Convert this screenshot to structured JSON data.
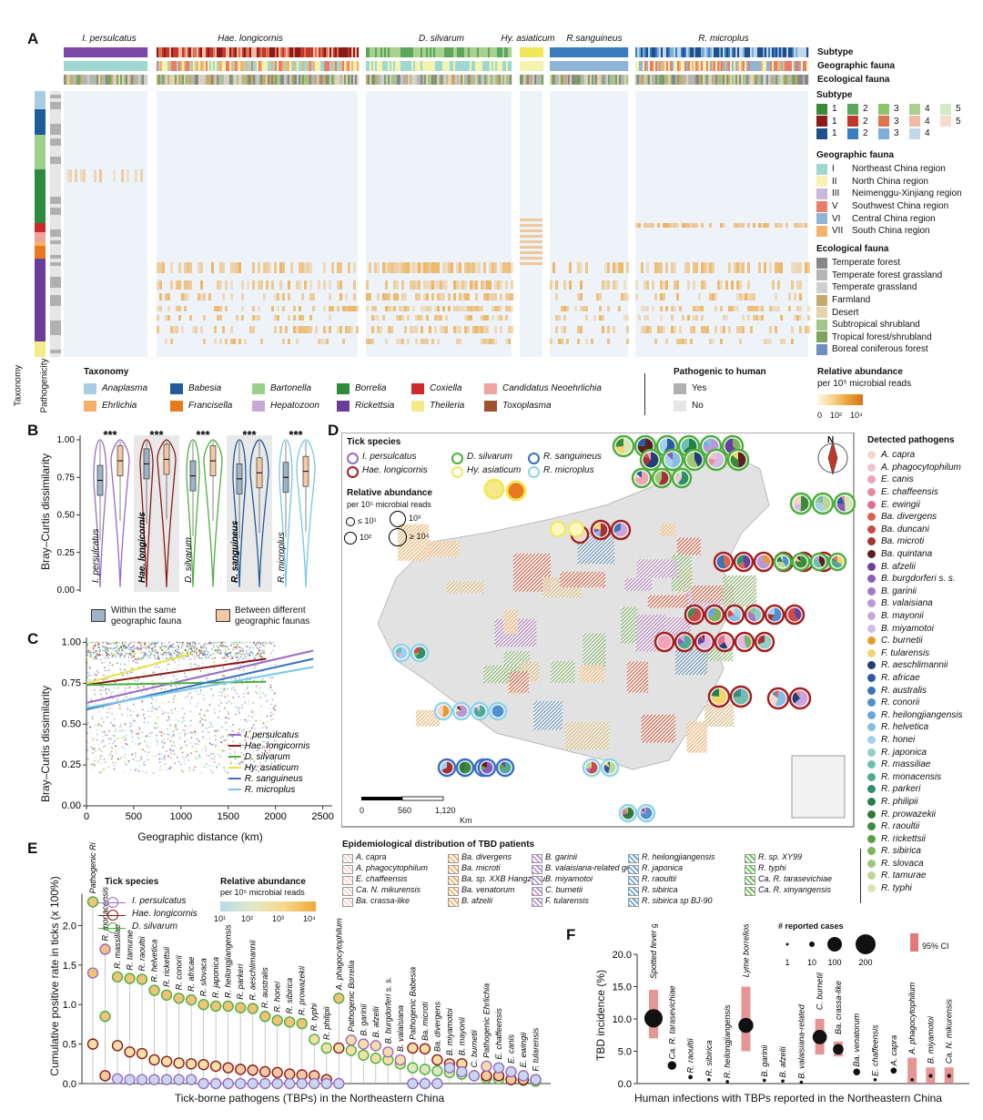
{
  "panelA": {
    "label": "A",
    "species_headers": [
      "I. persulcatus",
      "Hae. longicornis",
      "D. silvarum",
      "Hy. asiaticum",
      "R.sanguineus",
      "R. microplus"
    ],
    "track_labels": [
      "Subtype",
      "Geographic fauna",
      "Ecological fauna"
    ],
    "left_axis_labels": [
      "Taxonomy",
      "Pathogenicity"
    ],
    "subtype_title": "Subtype",
    "subtype_rows": [
      {
        "colors": [
          "#3a8a3a",
          "#5aa65a",
          "#8cc46c",
          "#a9d08e",
          "#d7e8c4"
        ],
        "labels": [
          "1",
          "2",
          "3",
          "4",
          "5"
        ]
      },
      {
        "colors": [
          "#8b1a1a",
          "#c0392b",
          "#e0734f",
          "#f3b9a4",
          "#f5dccd"
        ],
        "labels": [
          "1",
          "2",
          "3",
          "4",
          "5"
        ]
      },
      {
        "colors": [
          "#1f4e8c",
          "#3a7dbf",
          "#7eadd6",
          "#c2d8ea"
        ],
        "labels": [
          "1",
          "2",
          "3",
          "4"
        ]
      }
    ],
    "geo_title": "Geographic fauna",
    "geo_items": [
      {
        "num": "I",
        "label": "Northeast China region",
        "color": "#9ed8d0"
      },
      {
        "num": "II",
        "label": "North China region",
        "color": "#f6f3b0"
      },
      {
        "num": "III",
        "label": "Neimenggu-Xinjiang region",
        "color": "#c7b8dc"
      },
      {
        "num": "V",
        "label": "Southwest China region",
        "color": "#ea7c6e"
      },
      {
        "num": "VI",
        "label": "Central China region",
        "color": "#8fb4d6"
      },
      {
        "num": "VII",
        "label": "South China region",
        "color": "#f5b26b"
      }
    ],
    "eco_title": "Ecological fauna",
    "eco_items": [
      {
        "label": "Temperate forest",
        "color": "#888888"
      },
      {
        "label": "Temperate forest grassland",
        "color": "#b5b5b5"
      },
      {
        "label": "Temperate grassland",
        "color": "#cfcfcf"
      },
      {
        "label": "Farmland",
        "color": "#c9a86b"
      },
      {
        "label": "Desert",
        "color": "#e3d4ad"
      },
      {
        "label": "Subtropical shrubland",
        "color": "#a3c48a"
      },
      {
        "label": "Tropical forest/shrubland",
        "color": "#7da35f"
      },
      {
        "label": "Boreal coniferous forest",
        "color": "#6b8fbf"
      }
    ],
    "taxonomy_title": "Taxonomy",
    "taxonomy_items": [
      {
        "label": "Anaplasma",
        "color": "#a8cde3"
      },
      {
        "label": "Babesia",
        "color": "#1f5c99"
      },
      {
        "label": "Bartonella",
        "color": "#9bd08a"
      },
      {
        "label": "Borrelia",
        "color": "#2e8a3c"
      },
      {
        "label": "Coxiella",
        "color": "#cc2a2a"
      },
      {
        "label": "Candidatus Neoehrlichia",
        "color": "#f0a3a0"
      },
      {
        "label": "Ehrlichia",
        "color": "#f3b06a"
      },
      {
        "label": "Francisella",
        "color": "#e9791f"
      },
      {
        "label": "Hepatozoon",
        "color": "#c6a9d4"
      },
      {
        "label": "Rickettsia",
        "color": "#6a3d9a"
      },
      {
        "label": "Theileria",
        "color": "#f6e98a"
      },
      {
        "label": "Toxoplasma",
        "color": "#a0522d"
      }
    ],
    "pathogenic_title": "Pathogenic to human",
    "pathogenic_items": [
      {
        "label": "Yes",
        "color": "#b0b0b0"
      },
      {
        "label": "No",
        "color": "#e6e6e6"
      }
    ],
    "abundance_title": "Relative abundance",
    "abundance_sub": "per 10⁵ microbial reads",
    "abundance_ticks": [
      "0",
      "10²",
      "10⁴"
    ]
  },
  "panelB": {
    "label": "B",
    "ylabel": "Bray–Curtis dissimilarity",
    "yticks": [
      "0.00",
      "0.25",
      "0.50",
      "0.75",
      "1.00"
    ],
    "species": [
      "I. persulcatus",
      "Hae. longicornis",
      "D. silvarum",
      "R. sanguineus",
      "R. microplus"
    ],
    "significance": [
      "***",
      "***",
      "***",
      "***",
      "***"
    ],
    "legend_within": "Within the same geographic fauna",
    "legend_between": "Between different geographic faunas"
  },
  "panelC": {
    "label": "C",
    "ylabel": "Bray–Curtis dissimilarity",
    "xlabel": "Geographic distance (km)",
    "xticks": [
      "0",
      "500",
      "1000",
      "1500",
      "2000",
      "2500"
    ],
    "yticks": [
      "0.00",
      "0.25",
      "0.50",
      "0.75",
      "1.00"
    ],
    "legend": [
      {
        "label": "I. persulcatus",
        "color": "#9b6bc7"
      },
      {
        "label": "Hae. longicornis",
        "color": "#8b1a1a"
      },
      {
        "label": "D. silvarum",
        "color": "#4caf3c"
      },
      {
        "label": "Hy. asiaticum",
        "color": "#e6e24a"
      },
      {
        "label": "R. sanguineus",
        "color": "#3a6fc2"
      },
      {
        "label": "R. microplus",
        "color": "#77c7e6"
      }
    ]
  },
  "panelD": {
    "label": "D",
    "tick_title": "Tick species",
    "ticks": [
      {
        "label": "I. persulcatus",
        "color": "#9b6bc7"
      },
      {
        "label": "D. silvarum",
        "color": "#4caf3c"
      },
      {
        "label": "R. sanguineus",
        "color": "#3a6fc2"
      },
      {
        "label": "Hae. longicornis",
        "color": "#a32020"
      },
      {
        "label": "Hy. asiaticum",
        "color": "#f0e85a"
      },
      {
        "label": "R. microplus",
        "color": "#8fd3ea"
      }
    ],
    "abund_title": "Relative abundance",
    "abund_sub": "per 10⁵ microbial reads",
    "abund_sizes": [
      "≤ 10¹",
      "10³",
      "10²",
      "≥ 10⁴"
    ],
    "north": "N",
    "scale": [
      "0",
      "560",
      "1,120",
      "Km"
    ],
    "detected_title": "Detected pathogens",
    "pathogens": [
      {
        "label": "A. capra",
        "color": "#f3d6c9"
      },
      {
        "label": "A. phagocytophilum",
        "color": "#f2c1cf"
      },
      {
        "label": "E. canis",
        "color": "#f0a3b8"
      },
      {
        "label": "E. chaffeensis",
        "color": "#e88aa0"
      },
      {
        "label": "E. ewingii",
        "color": "#df6f8a"
      },
      {
        "label": "Ba. divergens",
        "color": "#e0604f"
      },
      {
        "label": "Ba. duncani",
        "color": "#c94a4a"
      },
      {
        "label": "Ba. microti",
        "color": "#a33232"
      },
      {
        "label": "Ba. quintana",
        "color": "#5a1f1f"
      },
      {
        "label": "B. afzelii",
        "color": "#6b3fa0"
      },
      {
        "label": "B. burgdorferi s. s.",
        "color": "#8a5bb8"
      },
      {
        "label": "B. garinii",
        "color": "#a17ac8"
      },
      {
        "label": "B. valaisiana",
        "color": "#b898d6"
      },
      {
        "label": "B. mayonii",
        "color": "#c8a6dc"
      },
      {
        "label": "B. miyamotoi",
        "color": "#d6bbe6"
      },
      {
        "label": "C. burnetii",
        "color": "#e59b2a"
      },
      {
        "label": "F. tularensis",
        "color": "#f3d36b"
      },
      {
        "label": "R. aeschlimannii",
        "color": "#233f73"
      },
      {
        "label": "R. africae",
        "color": "#2d5a9c"
      },
      {
        "label": "R. australis",
        "color": "#3a75b5"
      },
      {
        "label": "R. conorii",
        "color": "#4f8fcb"
      },
      {
        "label": "R. heilongjiangensis",
        "color": "#6aa7d8"
      },
      {
        "label": "R. helvetica",
        "color": "#86bde3"
      },
      {
        "label": "R. honei",
        "color": "#a2d1ec"
      },
      {
        "label": "R. japonica",
        "color": "#8fd0c9"
      },
      {
        "label": "R. massiliae",
        "color": "#6fbfb0"
      },
      {
        "label": "R. monacensis",
        "color": "#4faa94"
      },
      {
        "label": "R. parkeri",
        "color": "#2f8f6a"
      },
      {
        "label": "R. philipii",
        "color": "#23804c"
      },
      {
        "label": "R. prowazekii",
        "color": "#2f7a3a"
      },
      {
        "label": "R. raoultii",
        "color": "#3f8a3a"
      },
      {
        "label": "R. rickettsii",
        "color": "#5d9e48"
      },
      {
        "label": "R. sibirica",
        "color": "#7eb460"
      },
      {
        "label": "R. slovaca",
        "color": "#9fc87a"
      },
      {
        "label": "R. tamurae",
        "color": "#bcd796"
      },
      {
        "label": "R. typhi",
        "color": "#d8e6b4"
      }
    ],
    "epi_title": "Epidemiological distribution of TBD patients",
    "epi_items": [
      [
        "A. capra",
        "Ba. divergens",
        "B. garinii",
        "R. heilongjiangensis",
        "R. sp. XY99"
      ],
      [
        "A. phagocytophilum",
        "Ba. microti",
        "B. valaisiana-related gen.",
        "R. japonica",
        "R. typhi"
      ],
      [
        "E. chaffeensis",
        "Ba. sp. XXB Hangzhou",
        "B. miyamotoi",
        "R. raoultii",
        "Ca. R. tarasevichiae"
      ],
      [
        "Ca. N. mikurensis",
        "Ba. venatorum",
        "C. burnetii",
        "R. sibirica",
        "Ca. R. xinyangensis"
      ],
      [
        "Ba. crassa-like",
        "B. afzelii",
        "F. tularensis",
        "R. sibirica sp BJ-90",
        ""
      ]
    ]
  },
  "panelE": {
    "label": "E",
    "ylabel": "Cumulative positive rate in ticks (x 100%)",
    "xlabel": "Tick-borne pathogens (TBPs) in the Northeastern China",
    "yticks": [
      "0.0",
      "0.5",
      "1.0",
      "1.5",
      "2.0"
    ],
    "ymax": 2.4,
    "tick_title": "Tick species",
    "tick_legend": [
      {
        "label": "I. persulcatus",
        "color": "#9b6bc7"
      },
      {
        "label": "Hae. longicornis",
        "color": "#8b1a1a"
      },
      {
        "label": "D. silvarum",
        "color": "#4caf3c"
      }
    ],
    "abund_title": "Relative abundance",
    "abund_sub": "per 10⁵ microbial reads",
    "abund_ticks": [
      "10¹",
      "10²",
      "10³",
      "10⁴"
    ]
  },
  "chart_data": [
    {
      "type": "scatter",
      "title": "Cumulative positive rate in ticks",
      "xlabel": "Tick-borne pathogens (TBPs) in the Northeastern China",
      "ylabel": "Cumulative positive rate in ticks (x 100%)",
      "ylim": [
        0,
        2.4
      ],
      "categories": [
        "Pathogenic Rickettsia",
        "R. monacensis",
        "R. massiliae",
        "R. tamurae",
        "R. raoultii",
        "R. helvetica",
        "R. rickettsii",
        "R. conorii",
        "R. africae",
        "R. slovaca",
        "R. japonica",
        "R. heilongjiangensis",
        "R. parkeri",
        "R. aeschlimannii",
        "R. australis",
        "R. honei",
        "R. sibirica",
        "R. prowazekii",
        "R. typhi",
        "R. philipii",
        "A. phagocytophilum",
        "Pathogenic Borrelia",
        "B. garinii",
        "B. afzelii",
        "B. burgdorferi s. s.",
        "B. valaisiana",
        "Pathogenic Babesia",
        "Ba. microti",
        "Ba. divergens",
        "B. miyamotoi",
        "B. mayonii",
        "C. burnetii",
        "Pathogenic Ehrlichia",
        "E. chaffeensis",
        "E. canis",
        "E. ewingii",
        "F. tularensis"
      ],
      "series": [
        {
          "name": "D. silvarum",
          "values": [
            2.3,
            0.85,
            1.35,
            1.33,
            1.32,
            1.18,
            1.12,
            1.08,
            1.06,
            1.0,
            0.98,
            0.98,
            0.96,
            0.95,
            0.85,
            0.8,
            0.78,
            0.76,
            0.56,
            0.45,
            1.08,
            0.42,
            0.36,
            0.32,
            0.3,
            0.25,
            0.2,
            0.18,
            0.16,
            0.14,
            0.12,
            0.1,
            0.07,
            0.06,
            0.05,
            0.04,
            0.03
          ]
        },
        {
          "name": "Hae. longicornis",
          "values": [
            0.5,
            0.1,
            0.48,
            0.4,
            0.38,
            0.3,
            0.28,
            0.26,
            0.25,
            0.24,
            0.22,
            0.2,
            0.18,
            0.17,
            0.15,
            0.14,
            0.12,
            0.11,
            0.1,
            0.05,
            0.45,
            0.0,
            0.0,
            0.0,
            0.0,
            0.0,
            0.45,
            0.44,
            0.3,
            0.25,
            0.25,
            0.0,
            0.1,
            0.1,
            0.05,
            0.05,
            0.05
          ]
        },
        {
          "name": "I. persulcatus",
          "values": [
            1.4,
            1.7,
            0.06,
            0.05,
            0.05,
            0.05,
            0.05,
            0.05,
            0.05,
            0.0,
            0.0,
            0.0,
            0.0,
            0.0,
            0.0,
            0.0,
            0.0,
            0.0,
            0.0,
            0.0,
            0.0,
            0.55,
            0.5,
            0.48,
            0.4,
            0.3,
            0.0,
            0.0,
            0.0,
            0.2,
            0.15,
            0.1,
            0.22,
            0.2,
            0.15,
            0.1,
            0.05
          ]
        }
      ]
    },
    {
      "type": "scatter",
      "title": "TBD incidence",
      "xlabel": "Human infections with TBPs reported in the Northeastern China",
      "ylabel": "TBD incidence (%)",
      "ylim": [
        0,
        20
      ],
      "yticks": [
        0.0,
        5.0,
        10.0,
        15.0,
        20.0
      ],
      "categories": [
        "Spotted fever group rickettsiosis",
        "Ca. R. tarasevichiae",
        "R. raoultii",
        "R. sibirica",
        "R. heilongjiangensis",
        "Lyme borreliosis",
        "B. garinii",
        "B. afzelii",
        "B. valaisiana-related",
        "C. burnetii",
        "Ba. crassa-like",
        "Ba. venatorum",
        "E. chaffeensis",
        "A. capra",
        "A. phagocytophilum",
        "B. miyamotoi",
        "Ca. N. mikurensis"
      ],
      "values": [
        10.1,
        2.8,
        1.0,
        0.6,
        0.3,
        9.0,
        0.5,
        0.4,
        0.2,
        7.2,
        5.3,
        1.8,
        0.6,
        2.0,
        0.6,
        1.2,
        1.2
      ],
      "ci_low": [
        7.0,
        null,
        null,
        null,
        null,
        5.0,
        null,
        null,
        null,
        4.5,
        4.2,
        null,
        null,
        null,
        0.0,
        0.0,
        0.0
      ],
      "ci_high": [
        14.5,
        null,
        null,
        null,
        null,
        15.0,
        null,
        null,
        null,
        10.0,
        6.5,
        null,
        null,
        null,
        4.0,
        2.5,
        2.5
      ],
      "cases": [
        180,
        40,
        10,
        3,
        2,
        120,
        6,
        4,
        2,
        110,
        60,
        25,
        2,
        20,
        3,
        8,
        8
      ]
    },
    {
      "type": "line",
      "title": "Bray-Curtis dissimilarity vs geographic distance",
      "xlabel": "Geographic distance (km)",
      "ylabel": "Bray–Curtis dissimilarity",
      "xlim": [
        0,
        2600
      ],
      "ylim": [
        0,
        1
      ],
      "series": [
        {
          "name": "I. persulcatus",
          "x": [
            0,
            2400
          ],
          "y": [
            0.63,
            0.95
          ]
        },
        {
          "name": "Hae. longicornis",
          "x": [
            0,
            1900
          ],
          "y": [
            0.74,
            0.9
          ]
        },
        {
          "name": "D. silvarum",
          "x": [
            0,
            1900
          ],
          "y": [
            0.74,
            0.76
          ]
        },
        {
          "name": "Hy. asiaticum",
          "x": [
            0,
            1100
          ],
          "y": [
            0.75,
            0.93
          ]
        },
        {
          "name": "R. sanguineus",
          "x": [
            0,
            2400
          ],
          "y": [
            0.59,
            0.9
          ]
        },
        {
          "name": "R. microplus",
          "x": [
            0,
            2400
          ],
          "y": [
            0.6,
            0.85
          ]
        }
      ]
    },
    {
      "type": "box",
      "title": "Bray-Curtis dissimilarity within/between geographic faunas",
      "ylabel": "Bray–Curtis dissimilarity",
      "ylim": [
        0,
        1
      ],
      "categories": [
        "I. persulcatus",
        "Hae. longicornis",
        "D. silvarum",
        "R. sanguineus",
        "R. microplus"
      ],
      "series": [
        {
          "name": "Within the same geographic fauna",
          "median": [
            0.73,
            0.84,
            0.76,
            0.74,
            0.75
          ]
        },
        {
          "name": "Between different geographic faunas",
          "median": [
            0.86,
            0.87,
            0.86,
            0.78,
            0.79
          ]
        }
      ]
    }
  ],
  "panelF": {
    "label": "F",
    "ylabel": "TBD incidence (%)",
    "xlabel": "Human infections with TBPs reported in the Northeastern China",
    "cases_title": "# reported cases",
    "case_sizes": [
      "1",
      "10",
      "100",
      "200"
    ],
    "ci_label": "95% CI"
  }
}
